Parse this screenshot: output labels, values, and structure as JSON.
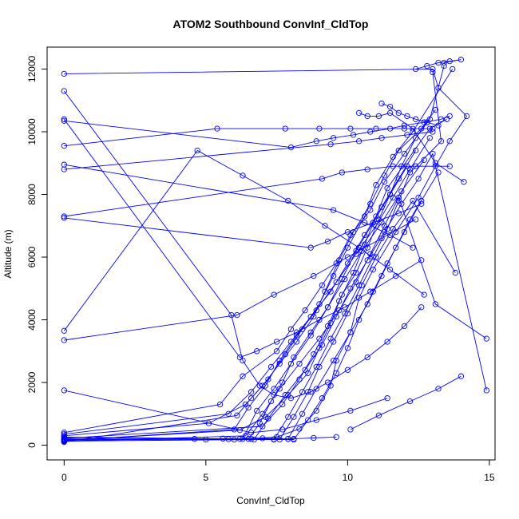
{
  "chart_data": {
    "type": "line",
    "title": "ATOM2 Southbound ConvInf_CldTop",
    "xlabel": "ConvInf_CldTop",
    "ylabel": "Altitude (m)",
    "xlim": [
      -0.6,
      15.2
    ],
    "ylim": [
      -470,
      12700
    ],
    "xticks": [
      0,
      5,
      10,
      15
    ],
    "yticks": [
      0,
      2000,
      4000,
      6000,
      8000,
      10000,
      12000
    ],
    "grid": false,
    "legend": "none",
    "series_color": "#0000ff",
    "markers": "open-circle",
    "series": [
      {
        "x": [
          0,
          6.0,
          7.5,
          8.3,
          8.9,
          9.4,
          9.6,
          10.1,
          10.4,
          10.9,
          11.7,
          12.5,
          13.1,
          13.6,
          14.2,
          13.2,
          13.0,
          0
        ],
        "y": [
          200,
          180,
          260,
          520,
          1100,
          1900,
          2700,
          3600,
          4700,
          5600,
          6800,
          7900,
          8900,
          9700,
          10500,
          11400,
          12000,
          11850
        ]
      },
      {
        "x": [
          0,
          6.2,
          7.1,
          7.9,
          8.6,
          9.0,
          9.4,
          9.8,
          10.3,
          10.7,
          11.1,
          11.5,
          11.9,
          12.4,
          12.9,
          13.4
        ],
        "y": [
          150,
          480,
          900,
          1600,
          2300,
          3100,
          3900,
          4800,
          5500,
          6300,
          7200,
          8000,
          8900,
          9800,
          10400,
          12100
        ]
      },
      {
        "x": [
          0,
          5.1,
          6.4,
          7.0,
          7.6,
          8.2,
          8.8,
          9.2,
          9.7,
          10.2,
          10.8,
          11.3,
          11.8,
          12.6,
          13.1
        ],
        "y": [
          300,
          700,
          1300,
          1900,
          2600,
          3300,
          4100,
          4900,
          5900,
          6800,
          7700,
          8600,
          9400,
          10100,
          10700
        ]
      },
      {
        "x": [
          0,
          6.5,
          6.9,
          7.3,
          7.7,
          8.1,
          8.7,
          9.3,
          9.9,
          10.5,
          11.2,
          11.9,
          12.7
        ],
        "y": [
          180,
          200,
          700,
          1400,
          2000,
          2800,
          3600,
          4400,
          5300,
          6200,
          7100,
          8100,
          9100
        ]
      },
      {
        "x": [
          0,
          7.4,
          7.9,
          8.4,
          8.9,
          9.4,
          9.9,
          10.4,
          10.9,
          11.4,
          11.8,
          12.2,
          13.3,
          13.0
        ],
        "y": [
          250,
          180,
          900,
          1700,
          2500,
          3400,
          4200,
          5100,
          6000,
          6900,
          7800,
          8700,
          9700,
          11900
        ]
      },
      {
        "x": [
          0,
          6.1,
          6.6,
          7.2,
          7.8,
          8.4,
          9.0,
          9.5,
          10.0,
          10.6,
          11.0,
          11.6,
          12.3,
          13.7
        ],
        "y": [
          100,
          950,
          1500,
          2100,
          2900,
          3700,
          4500,
          5400,
          6300,
          7300,
          8300,
          9200,
          10000,
          12000
        ]
      },
      {
        "x": [
          0,
          5.5,
          6.3,
          7.5,
          8.0,
          8.5,
          9.1,
          9.6,
          10.1,
          10.8,
          11.3,
          12.0,
          12.8
        ],
        "y": [
          400,
          1300,
          2200,
          3000,
          3700,
          4300,
          5100,
          5800,
          6700,
          7500,
          8400,
          9300,
          10300
        ]
      },
      {
        "x": [
          0,
          8.1,
          8.6,
          9.1,
          9.6,
          10.0,
          10.4,
          10.9,
          11.4,
          12.0,
          12.6
        ],
        "y": [
          200,
          180,
          800,
          1500,
          2300,
          3100,
          4000,
          4900,
          5800,
          6800,
          7800
        ]
      },
      {
        "x": [
          0,
          6.3,
          6.8,
          7.4,
          8.0,
          8.7,
          9.3,
          9.8,
          10.3,
          10.9,
          11.5,
          12.1
        ],
        "y": [
          160,
          200,
          1100,
          1800,
          2600,
          3500,
          4400,
          5300,
          6200,
          7100,
          8000,
          8900
        ]
      },
      {
        "x": [
          0,
          7.0,
          7.7,
          8.3,
          8.8,
          9.3,
          9.7,
          10.2,
          10.6,
          11.0,
          11.4,
          12.9,
          13.5
        ],
        "y": [
          220,
          600,
          1300,
          2100,
          2900,
          3800,
          4600,
          5500,
          6400,
          7300,
          8200,
          10100,
          10400
        ]
      },
      {
        "x": [
          0,
          6.7,
          7.2,
          7.8,
          8.5,
          9.1,
          9.6,
          10.1,
          10.7,
          11.3,
          11.9,
          12.5,
          13.0,
          14.9
        ],
        "y": [
          130,
          180,
          850,
          1600,
          2400,
          3200,
          4100,
          5000,
          5900,
          6800,
          7700,
          8500,
          9300,
          1750
        ]
      },
      {
        "x": [
          0,
          5.8,
          6.6,
          7.3,
          8.0,
          8.7,
          9.4,
          10.0,
          10.6,
          11.2,
          11.8,
          12.4
        ],
        "y": [
          350,
          1000,
          1700,
          2500,
          3300,
          4100,
          4900,
          5800,
          6700,
          7600,
          8500,
          9400
        ]
      },
      {
        "x": [
          0,
          7.9,
          8.4,
          8.9,
          9.5,
          10.1,
          10.7,
          11.2,
          11.7,
          12.2,
          13.2
        ],
        "y": [
          190,
          200,
          1000,
          1800,
          2700,
          3600,
          4500,
          5400,
          6300,
          7200,
          8700
        ]
      },
      {
        "x": [
          0,
          6.0,
          6.5,
          7.1,
          7.6,
          8.2,
          8.9,
          9.6,
          10.3,
          11.0,
          11.6,
          12.2,
          12.9
        ],
        "y": [
          140,
          500,
          1200,
          1900,
          2700,
          3500,
          4300,
          5200,
          6100,
          7000,
          7900,
          8800,
          9800
        ]
      },
      {
        "x": [
          0,
          7.6,
          8.1,
          8.6,
          9.0,
          9.5,
          10.0,
          10.5,
          11.0,
          11.6,
          12.3,
          13.8
        ],
        "y": [
          260,
          180,
          900,
          1700,
          2500,
          3300,
          4200,
          5100,
          6000,
          6900,
          7800,
          5500
        ]
      },
      {
        "x": [
          0,
          6.4,
          7.0,
          7.6,
          8.3,
          9.0,
          9.7,
          10.3,
          10.8,
          11.3,
          11.8,
          13.1,
          14.9
        ],
        "y": [
          120,
          300,
          1000,
          1800,
          2600,
          3400,
          4300,
          5200,
          6100,
          7000,
          7900,
          4500,
          3400
        ]
      },
      {
        "x": [
          0,
          8.0,
          8.9,
          9.5,
          10.2,
          10.8,
          11.5,
          12.0,
          12.7,
          13.3,
          13.6
        ],
        "y": [
          10350,
          9500,
          9700,
          9800,
          9900,
          10000,
          10100,
          10200,
          10300,
          10400,
          10500
        ]
      },
      {
        "x": [
          0,
          5.4,
          7.8,
          9.0,
          10.1,
          11.0,
          12.0,
          13.0
        ],
        "y": [
          9550,
          10100,
          10100,
          10100,
          10100,
          10100,
          10100,
          10100
        ]
      },
      {
        "x": [
          0,
          9.4,
          10.4,
          11.2,
          12.1,
          13.0
        ],
        "y": [
          8800,
          9600,
          9700,
          9800,
          9900,
          10000
        ]
      },
      {
        "x": [
          0,
          9.1,
          9.8,
          10.7,
          11.6,
          12.4,
          13.6
        ],
        "y": [
          7300,
          8500,
          8700,
          8800,
          8900,
          8900,
          8900
        ]
      },
      {
        "x": [
          0,
          8.7,
          9.3,
          10.0,
          10.9,
          11.8,
          12.6
        ],
        "y": [
          7250,
          6300,
          6500,
          6800,
          7100,
          7400,
          7700
        ]
      },
      {
        "x": [
          0,
          4.7,
          6.3,
          7.9,
          9.2,
          10.4,
          11.5,
          12.7
        ],
        "y": [
          3650,
          9400,
          8600,
          7800,
          7000,
          6300,
          5600,
          4800
        ]
      },
      {
        "x": [
          0,
          6.1,
          7.4,
          8.8,
          10.0,
          11.2,
          12.4
        ],
        "y": [
          3350,
          4150,
          4800,
          5400,
          6000,
          6600,
          7200
        ]
      },
      {
        "x": [
          0,
          5.9,
          6.3,
          6.9,
          7.4,
          8.0,
          8.7,
          9.3,
          10.0,
          10.7,
          11.4,
          12.0,
          12.6
        ],
        "y": [
          11300,
          4150,
          2700,
          1900,
          1600,
          1500,
          1700,
          2000,
          2400,
          2800,
          3300,
          3800,
          4400
        ]
      },
      {
        "x": [
          0,
          6.2,
          6.8,
          7.5,
          8.2,
          9.0,
          9.9,
          10.8,
          11.7,
          12.6
        ],
        "y": [
          10400,
          2800,
          3000,
          3300,
          3600,
          4000,
          4400,
          4900,
          5400,
          5900
        ]
      },
      {
        "x": [
          0,
          9.5,
          10.6,
          11.5,
          12.3
        ],
        "y": [
          8950,
          7500,
          7100,
          6700,
          6300
        ]
      },
      {
        "x": [
          0,
          6.6,
          7.7,
          8.9,
          10.1,
          11.4
        ],
        "y": [
          1750,
          400,
          500,
          800,
          1100,
          1500
        ]
      },
      {
        "x": [
          10.1,
          11.1,
          12.2,
          13.2,
          14.0
        ],
        "y": [
          500,
          950,
          1400,
          1800,
          2200
        ]
      },
      {
        "x": [
          11.2,
          11.5,
          11.8,
          12.1,
          12.4,
          12.8,
          13.2
        ],
        "y": [
          10900,
          10800,
          10600,
          10500,
          10400,
          10300,
          10200
        ]
      },
      {
        "x": [
          12.4,
          12.8,
          13.2,
          13.6,
          14.0,
          13.4
        ],
        "y": [
          12000,
          12100,
          12200,
          12250,
          12300,
          12200
        ]
      },
      {
        "x": [
          10.4,
          10.7,
          11.1,
          11.5,
          12.3,
          13.1,
          14.1
        ],
        "y": [
          10600,
          10500,
          10500,
          10600,
          10100,
          9000,
          8400
        ]
      },
      {
        "x": [
          4.6,
          5.6,
          6.2,
          7.0,
          7.9,
          8.8,
          9.6
        ],
        "y": [
          200,
          210,
          200,
          220,
          200,
          230,
          260
        ]
      },
      {
        "x": [
          5.0,
          5.8,
          6.6,
          7.4,
          8.1
        ],
        "y": [
          180,
          190,
          200,
          190,
          200
        ]
      }
    ]
  }
}
